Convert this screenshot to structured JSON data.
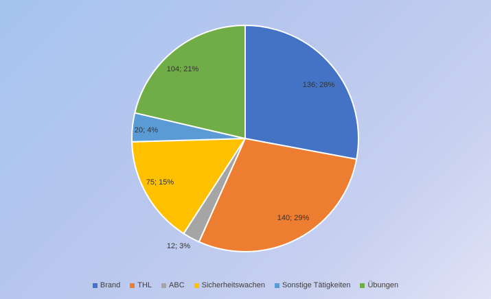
{
  "chart_data": {
    "type": "pie",
    "slices": [
      {
        "name": "Brand",
        "value": 136,
        "percent": 28,
        "label": "136; 28%",
        "color": "#4472c4"
      },
      {
        "name": "THL",
        "value": 140,
        "percent": 29,
        "label": "140; 29%",
        "color": "#ed7d31"
      },
      {
        "name": "ABC",
        "value": 12,
        "percent": 3,
        "label": "12; 3%",
        "color": "#a5a5a5"
      },
      {
        "name": "Sicherheitswachen",
        "value": 75,
        "percent": 15,
        "label": "75; 15%",
        "color": "#ffc000"
      },
      {
        "name": "Sonstige Tätigkeiten",
        "value": 20,
        "percent": 4,
        "label": "20; 4%",
        "color": "#5b9bd5"
      },
      {
        "name": "Übungen",
        "value": 104,
        "percent": 21,
        "label": "104; 21%",
        "color": "#70ad47"
      }
    ],
    "legend_position": "bottom",
    "start_angle": "12 o'clock",
    "direction": "clockwise"
  }
}
